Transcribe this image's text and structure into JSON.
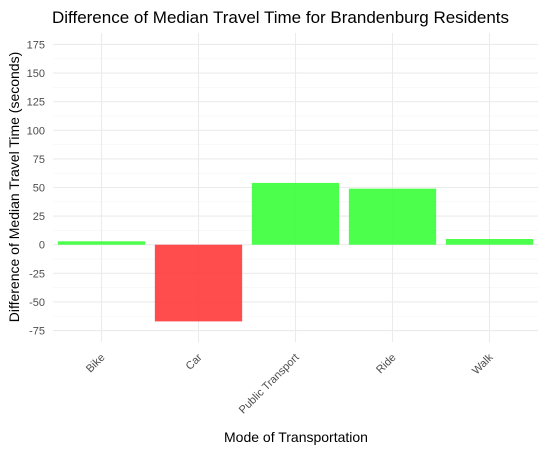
{
  "chart_data": {
    "type": "bar",
    "title": "Difference of Median Travel Time for Brandenburg Residents",
    "xlabel": "Mode of Transportation",
    "ylabel": "Difference of Median Travel Time (seconds)",
    "categories": [
      "Bike",
      "Car",
      "Public Transport",
      "Ride",
      "Walk"
    ],
    "values": [
      3,
      -67,
      54,
      49,
      5
    ],
    "ylim": [
      -85,
      185
    ],
    "yticks": [
      -75,
      -50,
      -25,
      0,
      25,
      50,
      75,
      100,
      125,
      150,
      175
    ],
    "grid": true,
    "legend": "none",
    "colors": {
      "positive": "#33ff33",
      "negative": "#ff3333",
      "grid_major": "#ebebeb",
      "grid_minor": "#f5f5f5"
    }
  }
}
